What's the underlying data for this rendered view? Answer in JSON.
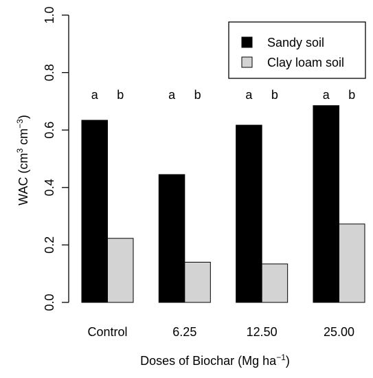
{
  "chart_data": {
    "type": "bar",
    "categories": [
      "Control",
      "6.25",
      "12.50",
      "25.00"
    ],
    "series": [
      {
        "name": "Sandy soil",
        "color": "#000000",
        "values": [
          0.634,
          0.445,
          0.617,
          0.685
        ]
      },
      {
        "name": "Clay loam soil",
        "color": "#d3d3d3",
        "values": [
          0.223,
          0.14,
          0.134,
          0.273
        ]
      }
    ],
    "significance_letters": [
      [
        "a",
        "b"
      ],
      [
        "a",
        "b"
      ],
      [
        "a",
        "b"
      ],
      [
        "a",
        "b"
      ]
    ],
    "xlabel": {
      "main": "Doses of Biochar (Mg ha",
      "sup": "−1",
      "end": ")"
    },
    "ylabel": {
      "a": "WAC (cm",
      "sup1": "3",
      "b": " cm",
      "sup2": "−3",
      "c": ")"
    },
    "y_ticks": [
      "0.0",
      "0.2",
      "0.4",
      "0.6",
      "0.8",
      "1.0"
    ],
    "ylim": [
      0,
      1
    ],
    "legend_position": "top-right",
    "grid": false
  }
}
